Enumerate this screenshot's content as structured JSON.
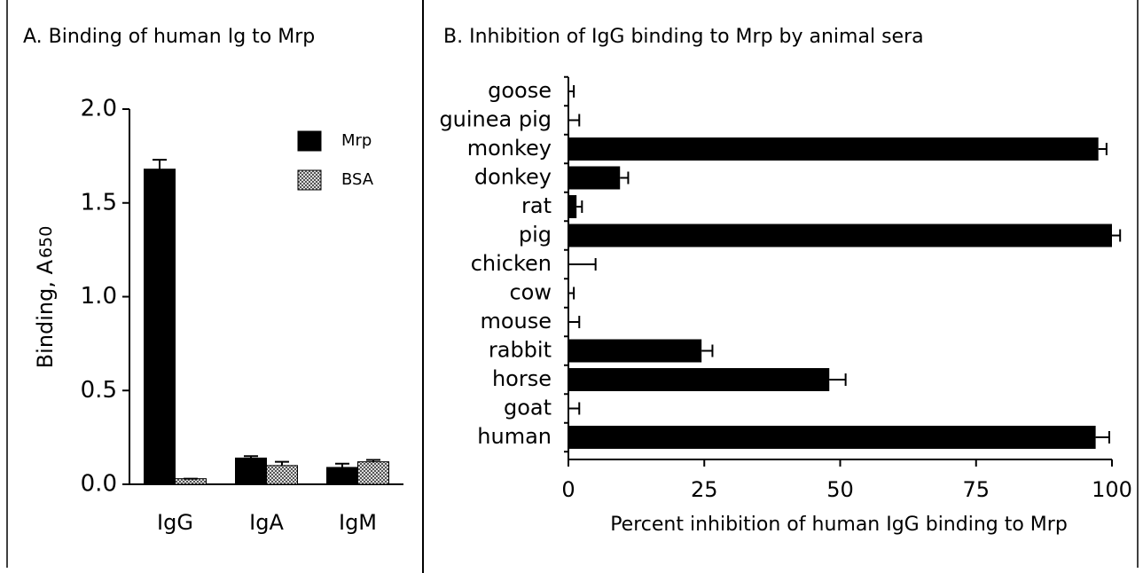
{
  "chart_data": [
    {
      "type": "grouped-bar",
      "title": "A.  Binding of human Ig to Mrp",
      "ylabel": "Binding,  A",
      "ylabel_sub": "650",
      "categories": [
        "IgG",
        "IgA",
        "IgM"
      ],
      "series": [
        {
          "name": "Mrp",
          "color": "#000000",
          "values": [
            1.68,
            0.14,
            0.09
          ],
          "errors": [
            0.05,
            0.01,
            0.02
          ]
        },
        {
          "name": "BSA",
          "color": "pattern",
          "values": [
            0.03,
            0.1,
            0.12
          ],
          "errors": [
            0.0,
            0.02,
            0.01
          ]
        }
      ],
      "ylim": [
        0,
        2
      ],
      "yticks": [
        {
          "value": 0,
          "label": "0.0"
        },
        {
          "value": 0.5,
          "label": "0.5"
        },
        {
          "value": 1,
          "label": "1.0"
        },
        {
          "value": 1.5,
          "label": "1.5"
        },
        {
          "value": 2,
          "label": "2.0"
        }
      ],
      "legend": "upper right"
    },
    {
      "type": "horizontal-bar",
      "title": "B.  Inhibition of IgG binding to Mrp by animal sera",
      "xlabel": "Percent inhibition of human IgG binding to Mrp",
      "categories": [
        "goose",
        "guinea pig",
        "monkey",
        "donkey",
        "rat",
        "pig",
        "chicken",
        "cow",
        "mouse",
        "rabbit",
        "horse",
        "goat",
        "human"
      ],
      "values": [
        0,
        0,
        97.5,
        9.5,
        1.5,
        100,
        0,
        0,
        0,
        24.5,
        48,
        0,
        97
      ],
      "errors": [
        1,
        2,
        1.5,
        1.5,
        1,
        1.5,
        5,
        1,
        2,
        2,
        3,
        2,
        2.5
      ],
      "color": "#000000",
      "xlim": [
        0,
        100
      ],
      "xticks": [
        0,
        25,
        50,
        75,
        100
      ]
    }
  ]
}
